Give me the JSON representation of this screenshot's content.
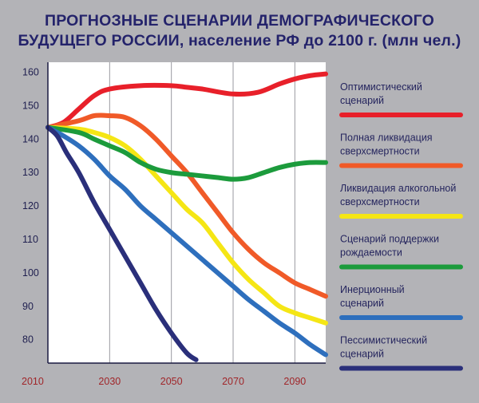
{
  "title_lines": [
    "ПРОГНОЗНЫЕ СЦЕНАРИИ ДЕМОГРАФИЧЕСКОГО",
    "БУДУЩЕГО РОССИИ, население РФ до 2100 г. (млн чел.)"
  ],
  "chart_data": {
    "type": "line",
    "title": "ПРОГНОЗНЫЕ СЦЕНАРИИ ДЕМОГРАФИЧЕСКОГО БУДУЩЕГО РОССИИ, население РФ до 2100 г. (млн чел.)",
    "xlabel": "",
    "ylabel": "",
    "xlim": [
      2010,
      2100
    ],
    "ylim": [
      73,
      163
    ],
    "x_ticks": [
      2010,
      2030,
      2050,
      2070,
      2090
    ],
    "y_ticks": [
      80,
      90,
      100,
      110,
      120,
      130,
      140,
      150,
      160
    ],
    "grid": {
      "vertical_every": 20,
      "horizontal": false
    },
    "legend_position": "right",
    "series": [
      {
        "name": "Оптимистический сценарий",
        "color": "#e8202a",
        "points": [
          [
            2010,
            143.5
          ],
          [
            2015,
            145
          ],
          [
            2020,
            149
          ],
          [
            2025,
            153
          ],
          [
            2030,
            155
          ],
          [
            2040,
            156
          ],
          [
            2050,
            156
          ],
          [
            2055,
            155.5
          ],
          [
            2060,
            155
          ],
          [
            2070,
            153.5
          ],
          [
            2078,
            154
          ],
          [
            2085,
            156.5
          ],
          [
            2090,
            158
          ],
          [
            2095,
            159
          ],
          [
            2100,
            159.5
          ]
        ]
      },
      {
        "name": "Полная ликвидация сверхсмертности",
        "color": "#f05a28",
        "points": [
          [
            2010,
            143.5
          ],
          [
            2020,
            145.5
          ],
          [
            2025,
            147
          ],
          [
            2030,
            147
          ],
          [
            2035,
            146.5
          ],
          [
            2040,
            144
          ],
          [
            2045,
            140
          ],
          [
            2050,
            135
          ],
          [
            2055,
            130
          ],
          [
            2060,
            124
          ],
          [
            2065,
            118
          ],
          [
            2070,
            112
          ],
          [
            2075,
            107
          ],
          [
            2080,
            103
          ],
          [
            2085,
            100
          ],
          [
            2090,
            97
          ],
          [
            2095,
            95
          ],
          [
            2100,
            93
          ]
        ]
      },
      {
        "name": "Ликвидация алкогольной сверхсмертности",
        "color": "#f5e615",
        "points": [
          [
            2010,
            143.5
          ],
          [
            2020,
            143
          ],
          [
            2025,
            142
          ],
          [
            2030,
            140.5
          ],
          [
            2035,
            138
          ],
          [
            2040,
            134
          ],
          [
            2045,
            129
          ],
          [
            2050,
            124
          ],
          [
            2055,
            119
          ],
          [
            2060,
            115
          ],
          [
            2065,
            109
          ],
          [
            2070,
            103
          ],
          [
            2075,
            98
          ],
          [
            2080,
            94
          ],
          [
            2085,
            90
          ],
          [
            2090,
            88
          ],
          [
            2095,
            86.5
          ],
          [
            2100,
            85
          ]
        ]
      },
      {
        "name": "Сценарий поддержки рождаемости",
        "color": "#1c9b3c",
        "points": [
          [
            2010,
            143.5
          ],
          [
            2020,
            142
          ],
          [
            2025,
            140
          ],
          [
            2030,
            138
          ],
          [
            2035,
            136
          ],
          [
            2040,
            133
          ],
          [
            2045,
            131
          ],
          [
            2050,
            130
          ],
          [
            2055,
            129.5
          ],
          [
            2060,
            129
          ],
          [
            2065,
            128.5
          ],
          [
            2070,
            128
          ],
          [
            2075,
            128.5
          ],
          [
            2080,
            130
          ],
          [
            2085,
            131.5
          ],
          [
            2090,
            132.5
          ],
          [
            2095,
            133
          ],
          [
            2100,
            133
          ]
        ]
      },
      {
        "name": "Инерционный сценарий",
        "color": "#2e6fbd",
        "points": [
          [
            2010,
            143.5
          ],
          [
            2015,
            141
          ],
          [
            2020,
            138
          ],
          [
            2025,
            134
          ],
          [
            2030,
            129
          ],
          [
            2035,
            125
          ],
          [
            2040,
            120
          ],
          [
            2045,
            116
          ],
          [
            2050,
            112
          ],
          [
            2055,
            108
          ],
          [
            2060,
            104
          ],
          [
            2065,
            100
          ],
          [
            2070,
            96
          ],
          [
            2075,
            92
          ],
          [
            2080,
            88.5
          ],
          [
            2085,
            85
          ],
          [
            2090,
            82
          ],
          [
            2095,
            78.5
          ],
          [
            2100,
            75.5
          ]
        ]
      },
      {
        "name": "Пессимистический сценарий",
        "color": "#2a2f7a",
        "points": [
          [
            2010,
            143.5
          ],
          [
            2013,
            141
          ],
          [
            2016,
            136
          ],
          [
            2020,
            130
          ],
          [
            2025,
            121
          ],
          [
            2030,
            113
          ],
          [
            2035,
            105
          ],
          [
            2040,
            97
          ],
          [
            2045,
            89
          ],
          [
            2050,
            82
          ],
          [
            2055,
            76
          ],
          [
            2058,
            74
          ]
        ]
      }
    ]
  },
  "legend": [
    {
      "line1": "Оптимистический",
      "line2": "сценарий",
      "color": "#e8202a"
    },
    {
      "line1": "Полная ликвидация",
      "line2": "сверхсмертности",
      "color": "#f05a28"
    },
    {
      "line1": "Ликвидация алкогольной",
      "line2": "сверхсмертности",
      "color": "#f5e615"
    },
    {
      "line1": "Сценарий поддержки",
      "line2": "рождаемости",
      "color": "#1c9b3c"
    },
    {
      "line1": "Инерционный",
      "line2": "сценарий",
      "color": "#2e6fbd"
    },
    {
      "line1": "Пессимистический",
      "line2": "сценарий",
      "color": "#2a2f7a"
    }
  ]
}
